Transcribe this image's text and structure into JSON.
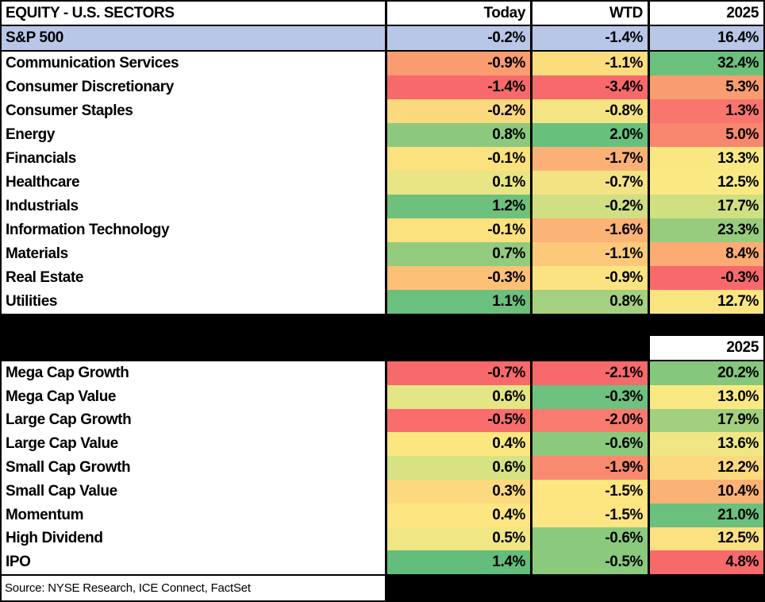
{
  "table": {
    "title": "EQUITY - U.S. SECTORS",
    "columns": [
      "Today",
      "WTD",
      "2025"
    ],
    "index_row": {
      "label": "S&P 500",
      "values": [
        "-0.2%",
        "-1.4%",
        "16.4%"
      ],
      "row_bg": "#B8C7E8"
    },
    "sectors": [
      {
        "label": "Communication Services",
        "values": [
          "-0.9%",
          "-1.1%",
          "32.4%"
        ],
        "colors": [
          "#F99D70",
          "#FCDD7D",
          "#6BC07C"
        ]
      },
      {
        "label": "Consumer Discretionary",
        "values": [
          "-1.4%",
          "-3.4%",
          "5.3%"
        ],
        "colors": [
          "#F8696B",
          "#F8696B",
          "#F99D70"
        ]
      },
      {
        "label": "Consumer Staples",
        "values": [
          "-0.2%",
          "-0.8%",
          "1.3%"
        ],
        "colors": [
          "#FCD97D",
          "#F4E482",
          "#F8766E"
        ]
      },
      {
        "label": "Energy",
        "values": [
          "0.8%",
          "2.0%",
          "5.0%"
        ],
        "colors": [
          "#8CC97E",
          "#68C07D",
          "#F9876F"
        ]
      },
      {
        "label": "Financials",
        "values": [
          "-0.1%",
          "-1.7%",
          "13.3%"
        ],
        "colors": [
          "#FCE17F",
          "#FBB176",
          "#F9E882"
        ]
      },
      {
        "label": "Healthcare",
        "values": [
          "0.1%",
          "-0.7%",
          "12.5%"
        ],
        "colors": [
          "#E9E585",
          "#F3E383",
          "#FAE983"
        ]
      },
      {
        "label": "Industrials",
        "values": [
          "1.2%",
          "-0.2%",
          "17.7%"
        ],
        "colors": [
          "#6DC17C",
          "#CFDF82",
          "#CFE081"
        ]
      },
      {
        "label": "Information Technology",
        "values": [
          "-0.1%",
          "-1.6%",
          "23.3%"
        ],
        "colors": [
          "#FCE17F",
          "#FBB376",
          "#97CC7E"
        ]
      },
      {
        "label": "Materials",
        "values": [
          "0.7%",
          "-1.1%",
          "8.4%"
        ],
        "colors": [
          "#93CB7E",
          "#FCC97A",
          "#FBAB73"
        ]
      },
      {
        "label": "Real Estate",
        "values": [
          "-0.3%",
          "-0.9%",
          "-0.3%"
        ],
        "colors": [
          "#FCC077",
          "#FCE381",
          "#F8696B"
        ]
      },
      {
        "label": "Utilities",
        "values": [
          "1.1%",
          "0.8%",
          "12.7%"
        ],
        "colors": [
          "#6CC07D",
          "#A4D07F",
          "#FBE582"
        ]
      }
    ],
    "styles_section": {
      "year_header": "2025",
      "rows": [
        {
          "label": "Mega Cap Growth",
          "values": [
            "-0.7%",
            "-2.1%",
            "20.2%"
          ],
          "colors": [
            "#F8696B",
            "#F8696B",
            "#84C77D"
          ]
        },
        {
          "label": "Mega Cap Value",
          "values": [
            "0.6%",
            "-0.3%",
            "13.0%"
          ],
          "colors": [
            "#E4E584",
            "#6EC17E",
            "#FAE983"
          ]
        },
        {
          "label": "Large Cap Growth",
          "values": [
            "-0.5%",
            "-2.0%",
            "17.9%"
          ],
          "colors": [
            "#F96D6C",
            "#F97A6E",
            "#A3D07F"
          ]
        },
        {
          "label": "Large Cap Value",
          "values": [
            "0.4%",
            "-0.6%",
            "13.6%"
          ],
          "colors": [
            "#FBE780",
            "#8BC97D",
            "#F0E683"
          ]
        },
        {
          "label": "Small Cap Growth",
          "values": [
            "0.6%",
            "-1.9%",
            "12.2%"
          ],
          "colors": [
            "#D7E283",
            "#F98A70",
            "#FCD97E"
          ]
        },
        {
          "label": "Small Cap Value",
          "values": [
            "0.3%",
            "-1.5%",
            "10.4%"
          ],
          "colors": [
            "#FCD97E",
            "#FDE580",
            "#FBB375"
          ]
        },
        {
          "label": "Momentum",
          "values": [
            "0.4%",
            "-1.5%",
            "21.0%"
          ],
          "colors": [
            "#FDE581",
            "#FDE582",
            "#6CC07D"
          ]
        },
        {
          "label": "High Dividend",
          "values": [
            "0.5%",
            "-0.6%",
            "12.5%"
          ],
          "colors": [
            "#F0E684",
            "#8BC97D",
            "#FBE182"
          ]
        },
        {
          "label": "IPO",
          "values": [
            "1.4%",
            "-0.5%",
            "4.8%"
          ],
          "colors": [
            "#63BE7B",
            "#8BC97D",
            "#F8696B"
          ]
        }
      ]
    },
    "source": "Source: NYSE Research, ICE Connect, FactSet",
    "accent_colors": {
      "index_blue": "#B8C7E8",
      "negative_red": "#F8696B",
      "neutral_yellow": "#FFE584",
      "positive_green": "#63BE7B",
      "grid_black": "#000000"
    }
  },
  "chart_data": {
    "type": "heatmap",
    "title": "EQUITY - U.S. SECTORS",
    "columns": [
      "Today",
      "WTD",
      "2025"
    ],
    "unit": "percent",
    "rows": [
      {
        "label": "S&P 500",
        "values": [
          -0.2,
          -1.4,
          16.4
        ]
      },
      {
        "label": "Communication Services",
        "values": [
          -0.9,
          -1.1,
          32.4
        ]
      },
      {
        "label": "Consumer Discretionary",
        "values": [
          -1.4,
          -3.4,
          5.3
        ]
      },
      {
        "label": "Consumer Staples",
        "values": [
          -0.2,
          -0.8,
          1.3
        ]
      },
      {
        "label": "Energy",
        "values": [
          0.8,
          2.0,
          5.0
        ]
      },
      {
        "label": "Financials",
        "values": [
          -0.1,
          -1.7,
          13.3
        ]
      },
      {
        "label": "Healthcare",
        "values": [
          0.1,
          -0.7,
          12.5
        ]
      },
      {
        "label": "Industrials",
        "values": [
          1.2,
          -0.2,
          17.7
        ]
      },
      {
        "label": "Information Technology",
        "values": [
          -0.1,
          -1.6,
          23.3
        ]
      },
      {
        "label": "Materials",
        "values": [
          0.7,
          -1.1,
          8.4
        ]
      },
      {
        "label": "Real Estate",
        "values": [
          -0.3,
          -0.9,
          -0.3
        ]
      },
      {
        "label": "Utilities",
        "values": [
          1.1,
          0.8,
          12.7
        ]
      },
      {
        "label": "Mega Cap Growth",
        "values": [
          -0.7,
          -2.1,
          20.2
        ]
      },
      {
        "label": "Mega Cap Value",
        "values": [
          0.6,
          -0.3,
          13.0
        ]
      },
      {
        "label": "Large Cap Growth",
        "values": [
          -0.5,
          -2.0,
          17.9
        ]
      },
      {
        "label": "Large Cap Value",
        "values": [
          0.4,
          -0.6,
          13.6
        ]
      },
      {
        "label": "Small Cap Growth",
        "values": [
          0.6,
          -1.9,
          12.2
        ]
      },
      {
        "label": "Small Cap Value",
        "values": [
          0.3,
          -1.5,
          10.4
        ]
      },
      {
        "label": "Momentum",
        "values": [
          0.4,
          -1.5,
          21.0
        ]
      },
      {
        "label": "High Dividend",
        "values": [
          0.5,
          -0.6,
          12.5
        ]
      },
      {
        "label": "IPO",
        "values": [
          1.4,
          -0.5,
          4.8
        ]
      }
    ],
    "color_scale": {
      "low": "#F8696B",
      "mid": "#FFE584",
      "high": "#63BE7B"
    },
    "legend": "none"
  }
}
